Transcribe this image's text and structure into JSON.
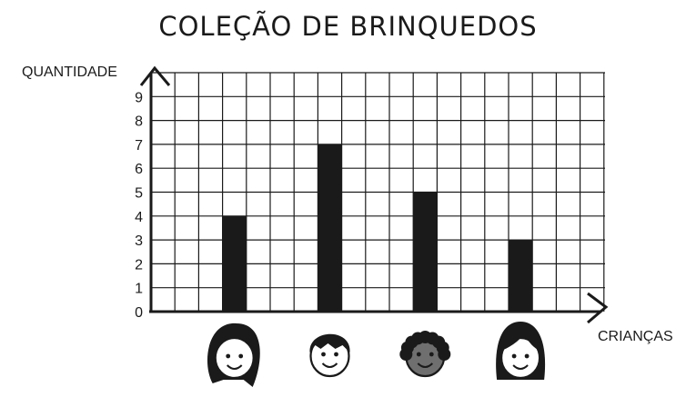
{
  "chart_data": {
    "type": "bar",
    "title": "COLEÇÃO DE BRINQUEDOS",
    "xlabel": "CRIANÇAS",
    "ylabel": "QUANTIDADE",
    "categories": [
      "girl-curly-hair-icon",
      "boy-short-hair-icon",
      "boy-curly-hair-icon",
      "girl-straight-hair-icon"
    ],
    "values": [
      4,
      7,
      5,
      3
    ],
    "yticks": [
      "0",
      "1",
      "2",
      "3",
      "4",
      "5",
      "6",
      "7",
      "8",
      "9"
    ],
    "ylim": [
      0,
      10
    ],
    "grid": true,
    "bar_color": "#1a1a1a",
    "grid_color": "#1a1a1a",
    "skin_dark_color": "#6f6f6f"
  }
}
